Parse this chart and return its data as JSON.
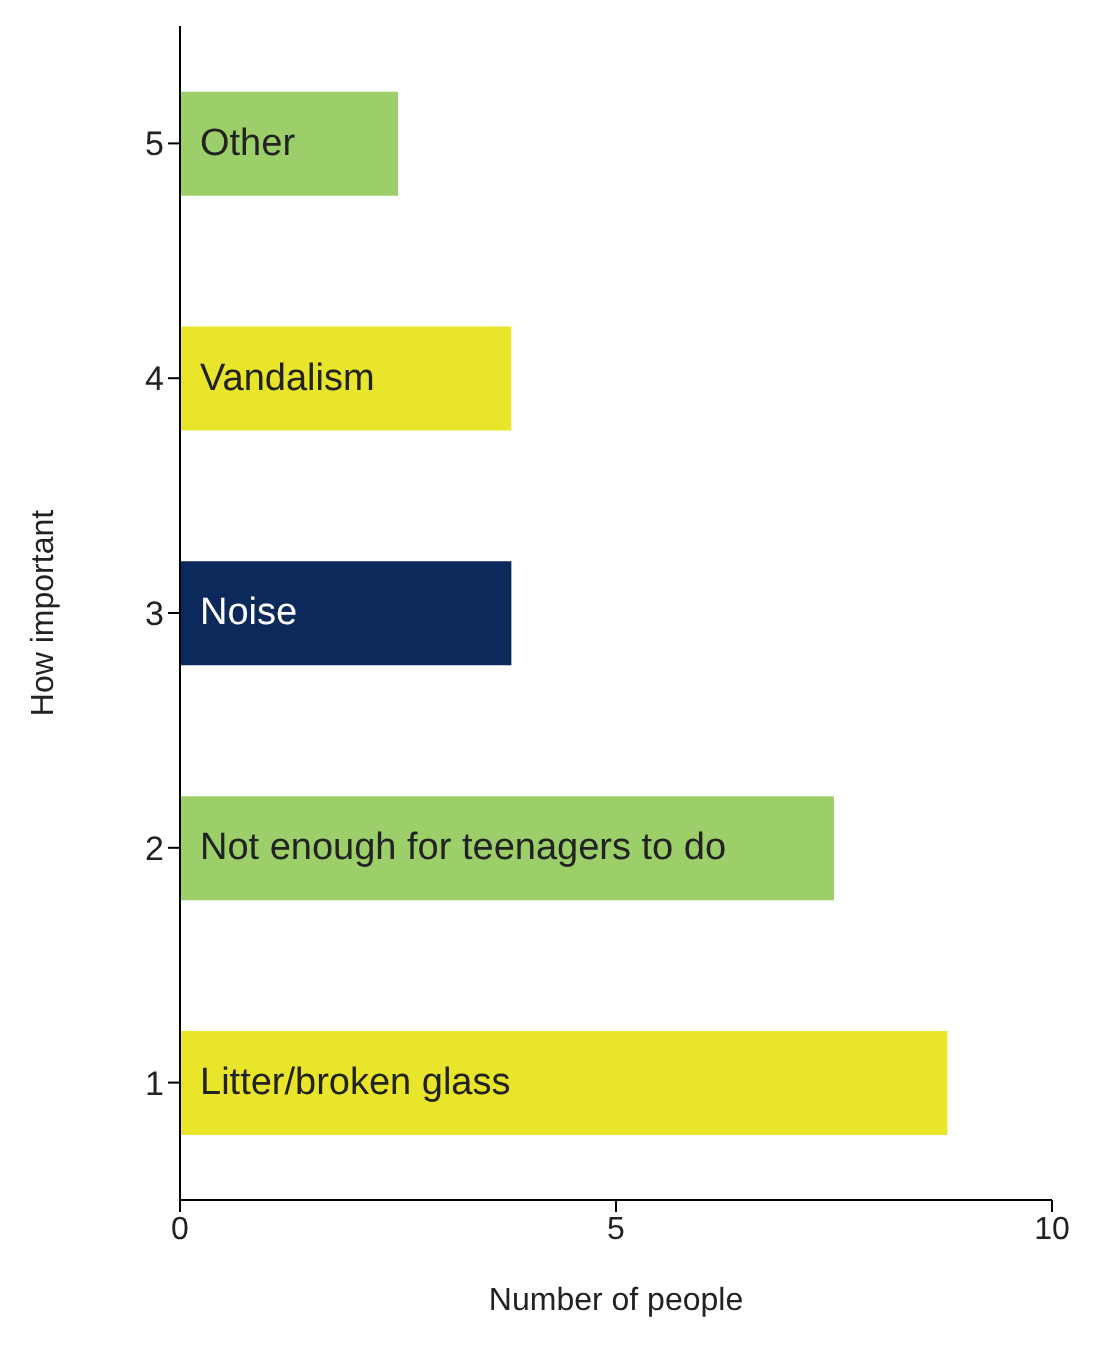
{
  "chart_data": {
    "type": "bar",
    "orientation": "horizontal",
    "xlabel": "Number of people",
    "ylabel": "How important",
    "categories": [
      "5",
      "4",
      "3",
      "2",
      "1"
    ],
    "values": [
      2.5,
      3.8,
      3.8,
      7.5,
      8.8
    ],
    "colors": [
      "#9ccf6a",
      "#e8e52a",
      "#0b2a5b",
      "#9ccf6a",
      "#e8e52a"
    ],
    "value_labels": [
      "Other",
      "Vandalism",
      "Noise",
      "Not enough for teenagers to do",
      "Litter/broken glass"
    ],
    "xlim": [
      0,
      10
    ],
    "xticks": [
      0,
      5,
      10
    ],
    "grid": false
  }
}
